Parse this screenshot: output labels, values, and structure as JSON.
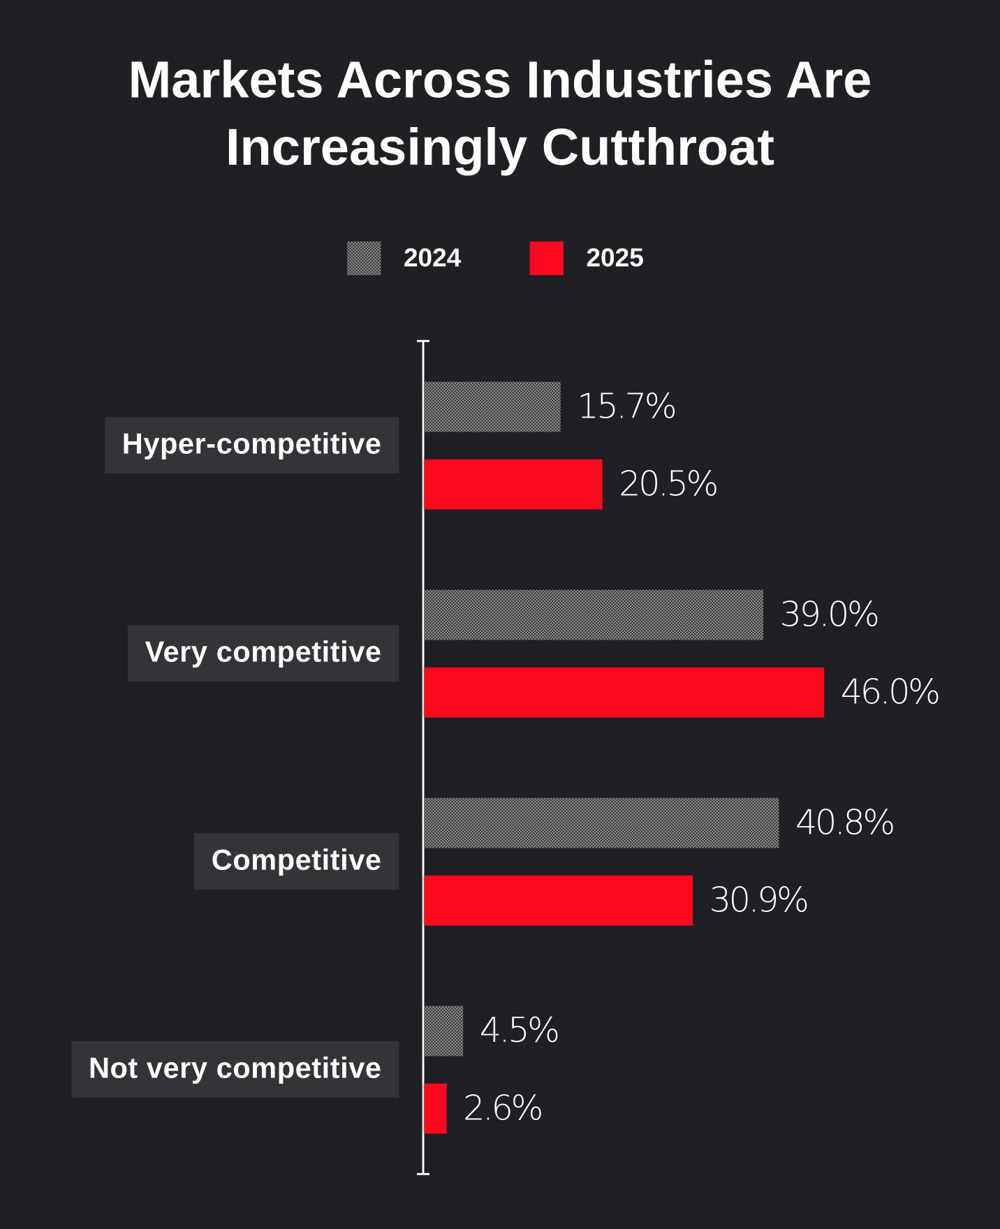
{
  "chart_data": {
    "type": "bar",
    "orientation": "horizontal",
    "title": "Markets Across Industries Are Increasingly Cutthroat",
    "categories": [
      "Hyper-competitive",
      "Very competitive",
      "Competitive",
      "Not very competitive"
    ],
    "series": [
      {
        "name": "2024",
        "color": "#9a9a9a",
        "pattern": "checker",
        "values": [
          15.7,
          39.0,
          40.8,
          4.5
        ],
        "value_labels": [
          "15.7%",
          "39.0%",
          "40.8%",
          "4.5%"
        ]
      },
      {
        "name": "2025",
        "color": "#ff0820",
        "values": [
          20.5,
          46.0,
          30.9,
          2.6
        ],
        "value_labels": [
          "20.5%",
          "46.0%",
          "30.9%",
          "2.6%"
        ]
      }
    ]
  }
}
